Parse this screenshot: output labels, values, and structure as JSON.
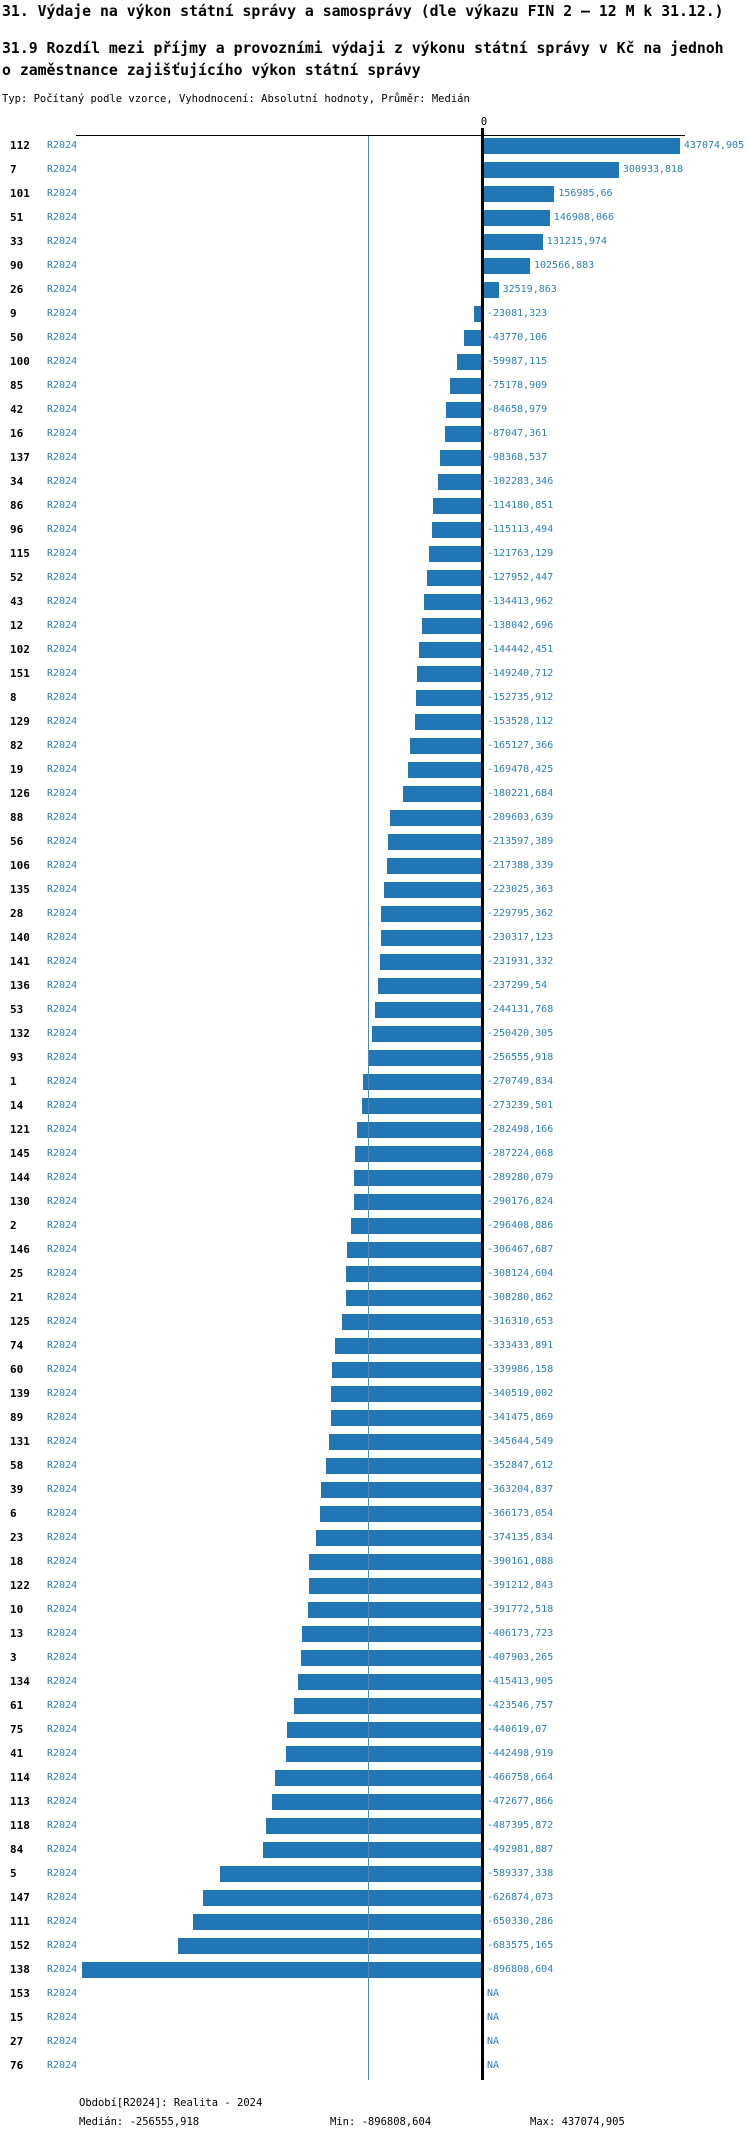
{
  "header": {
    "title": "31. Výdaje na výkon státní správy a samosprávy (dle výkazu FIN 2 – 12 M k 31.12.)",
    "subtitle_line1": "31.9 Rozdíl mezi příjmy a provozními výdaji z výkonu státní správy v Kč na jednoh",
    "subtitle_line2": "o zaměstnance zajišťujícího výkon státní správy",
    "meta": "Typ: Počítaný podle vzorce, Vyhodnocení: Absolutní hodnoty, Průměr: Medián"
  },
  "chart_data": {
    "type": "bar",
    "orientation": "horizontal",
    "zero_label": "0",
    "na_label": "NA",
    "series_label": "R2024",
    "xlim": [
      -910300,
      448400
    ],
    "median_value": -256555.918,
    "min_value": -896808.604,
    "max_value": 437074.905,
    "colors": {
      "bar": "#2077b4",
      "blue_text": "#2d7eb5",
      "median_line": "#4389bc",
      "axis": "#000000"
    },
    "rows": [
      {
        "id": "112",
        "period": "R2024",
        "value": 437074.905,
        "label": "437074,905"
      },
      {
        "id": "7",
        "period": "R2024",
        "value": 300933.818,
        "label": "300933,818"
      },
      {
        "id": "101",
        "period": "R2024",
        "value": 156985.66,
        "label": "156985,66"
      },
      {
        "id": "51",
        "period": "R2024",
        "value": 146908.066,
        "label": "146908,066"
      },
      {
        "id": "33",
        "period": "R2024",
        "value": 131215.974,
        "label": "131215,974"
      },
      {
        "id": "90",
        "period": "R2024",
        "value": 102566.883,
        "label": "102566,883"
      },
      {
        "id": "26",
        "period": "R2024",
        "value": 32519.863,
        "label": "32519,863"
      },
      {
        "id": "9",
        "period": "R2024",
        "value": -23081.323,
        "label": "-23081,323"
      },
      {
        "id": "50",
        "period": "R2024",
        "value": -43770.106,
        "label": "-43770,106"
      },
      {
        "id": "100",
        "period": "R2024",
        "value": -59987.115,
        "label": "-59987,115"
      },
      {
        "id": "85",
        "period": "R2024",
        "value": -75178.909,
        "label": "-75178,909"
      },
      {
        "id": "42",
        "period": "R2024",
        "value": -84658.979,
        "label": "-84658,979"
      },
      {
        "id": "16",
        "period": "R2024",
        "value": -87047.361,
        "label": "-87047,361"
      },
      {
        "id": "137",
        "period": "R2024",
        "value": -98368.537,
        "label": "-98368,537"
      },
      {
        "id": "34",
        "period": "R2024",
        "value": -102283.346,
        "label": "-102283,346"
      },
      {
        "id": "86",
        "period": "R2024",
        "value": -114180.851,
        "label": "-114180,851"
      },
      {
        "id": "96",
        "period": "R2024",
        "value": -115113.494,
        "label": "-115113,494"
      },
      {
        "id": "115",
        "period": "R2024",
        "value": -121763.129,
        "label": "-121763,129"
      },
      {
        "id": "52",
        "period": "R2024",
        "value": -127952.447,
        "label": "-127952,447"
      },
      {
        "id": "43",
        "period": "R2024",
        "value": -134413.962,
        "label": "-134413,962"
      },
      {
        "id": "12",
        "period": "R2024",
        "value": -138042.696,
        "label": "-138042,696"
      },
      {
        "id": "102",
        "period": "R2024",
        "value": -144442.451,
        "label": "-144442,451"
      },
      {
        "id": "151",
        "period": "R2024",
        "value": -149240.712,
        "label": "-149240,712"
      },
      {
        "id": "8",
        "period": "R2024",
        "value": -152735.912,
        "label": "-152735,912"
      },
      {
        "id": "129",
        "period": "R2024",
        "value": -153528.112,
        "label": "-153528,112"
      },
      {
        "id": "82",
        "period": "R2024",
        "value": -165127.366,
        "label": "-165127,366"
      },
      {
        "id": "19",
        "period": "R2024",
        "value": -169478.425,
        "label": "-169478,425"
      },
      {
        "id": "126",
        "period": "R2024",
        "value": -180221.684,
        "label": "-180221,684"
      },
      {
        "id": "88",
        "period": "R2024",
        "value": -209603.639,
        "label": "-209603,639"
      },
      {
        "id": "56",
        "period": "R2024",
        "value": -213597.389,
        "label": "-213597,389"
      },
      {
        "id": "106",
        "period": "R2024",
        "value": -217388.339,
        "label": "-217388,339"
      },
      {
        "id": "135",
        "period": "R2024",
        "value": -223025.363,
        "label": "-223025,363"
      },
      {
        "id": "28",
        "period": "R2024",
        "value": -229795.362,
        "label": "-229795,362"
      },
      {
        "id": "140",
        "period": "R2024",
        "value": -230317.123,
        "label": "-230317,123"
      },
      {
        "id": "141",
        "period": "R2024",
        "value": -231931.332,
        "label": "-231931,332"
      },
      {
        "id": "136",
        "period": "R2024",
        "value": -237299.54,
        "label": "-237299,54"
      },
      {
        "id": "53",
        "period": "R2024",
        "value": -244131.768,
        "label": "-244131,768"
      },
      {
        "id": "132",
        "period": "R2024",
        "value": -250420.305,
        "label": "-250420,305"
      },
      {
        "id": "93",
        "period": "R2024",
        "value": -256555.918,
        "label": "-256555,918"
      },
      {
        "id": "1",
        "period": "R2024",
        "value": -270749.834,
        "label": "-270749,834"
      },
      {
        "id": "14",
        "period": "R2024",
        "value": -273239.501,
        "label": "-273239,501"
      },
      {
        "id": "121",
        "period": "R2024",
        "value": -282498.166,
        "label": "-282498,166"
      },
      {
        "id": "145",
        "period": "R2024",
        "value": -287224.068,
        "label": "-287224,068"
      },
      {
        "id": "144",
        "period": "R2024",
        "value": -289280.079,
        "label": "-289280,079"
      },
      {
        "id": "130",
        "period": "R2024",
        "value": -290176.824,
        "label": "-290176,824"
      },
      {
        "id": "2",
        "period": "R2024",
        "value": -296408.886,
        "label": "-296408,886"
      },
      {
        "id": "146",
        "period": "R2024",
        "value": -306467.687,
        "label": "-306467,687"
      },
      {
        "id": "25",
        "period": "R2024",
        "value": -308124.604,
        "label": "-308124,604"
      },
      {
        "id": "21",
        "period": "R2024",
        "value": -308280.862,
        "label": "-308280,862"
      },
      {
        "id": "125",
        "period": "R2024",
        "value": -316310.653,
        "label": "-316310,653"
      },
      {
        "id": "74",
        "period": "R2024",
        "value": -333433.891,
        "label": "-333433,891"
      },
      {
        "id": "60",
        "period": "R2024",
        "value": -339986.158,
        "label": "-339986,158"
      },
      {
        "id": "139",
        "period": "R2024",
        "value": -340519.002,
        "label": "-340519,002"
      },
      {
        "id": "89",
        "period": "R2024",
        "value": -341475.869,
        "label": "-341475,869"
      },
      {
        "id": "131",
        "period": "R2024",
        "value": -345644.549,
        "label": "-345644,549"
      },
      {
        "id": "58",
        "period": "R2024",
        "value": -352847.612,
        "label": "-352847,612"
      },
      {
        "id": "39",
        "period": "R2024",
        "value": -363204.837,
        "label": "-363204,837"
      },
      {
        "id": "6",
        "period": "R2024",
        "value": -366173.054,
        "label": "-366173,054"
      },
      {
        "id": "23",
        "period": "R2024",
        "value": -374135.834,
        "label": "-374135,834"
      },
      {
        "id": "18",
        "period": "R2024",
        "value": -390161.088,
        "label": "-390161,088"
      },
      {
        "id": "122",
        "period": "R2024",
        "value": -391212.843,
        "label": "-391212,843"
      },
      {
        "id": "10",
        "period": "R2024",
        "value": -391772.518,
        "label": "-391772,518"
      },
      {
        "id": "13",
        "period": "R2024",
        "value": -406173.723,
        "label": "-406173,723"
      },
      {
        "id": "3",
        "period": "R2024",
        "value": -407903.265,
        "label": "-407903,265"
      },
      {
        "id": "134",
        "period": "R2024",
        "value": -415413.905,
        "label": "-415413,905"
      },
      {
        "id": "61",
        "period": "R2024",
        "value": -423546.757,
        "label": "-423546,757"
      },
      {
        "id": "75",
        "period": "R2024",
        "value": -440619.07,
        "label": "-440619,07"
      },
      {
        "id": "41",
        "period": "R2024",
        "value": -442498.919,
        "label": "-442498,919"
      },
      {
        "id": "114",
        "period": "R2024",
        "value": -466758.664,
        "label": "-466758,664"
      },
      {
        "id": "113",
        "period": "R2024",
        "value": -472677.866,
        "label": "-472677,866"
      },
      {
        "id": "118",
        "period": "R2024",
        "value": -487395.872,
        "label": "-487395,872"
      },
      {
        "id": "84",
        "period": "R2024",
        "value": -492981.887,
        "label": "-492981,887"
      },
      {
        "id": "5",
        "period": "R2024",
        "value": -589337.338,
        "label": "-589337,338"
      },
      {
        "id": "147",
        "period": "R2024",
        "value": -626874.073,
        "label": "-626874,073"
      },
      {
        "id": "111",
        "period": "R2024",
        "value": -650330.286,
        "label": "-650330,286"
      },
      {
        "id": "152",
        "period": "R2024",
        "value": -683575.165,
        "label": "-683575,165"
      },
      {
        "id": "138",
        "period": "R2024",
        "value": -896808.604,
        "label": "-896808,604"
      },
      {
        "id": "153",
        "period": "R2024",
        "value": null,
        "label": "NA"
      },
      {
        "id": "15",
        "period": "R2024",
        "value": null,
        "label": "NA"
      },
      {
        "id": "27",
        "period": "R2024",
        "value": null,
        "label": "NA"
      },
      {
        "id": "76",
        "period": "R2024",
        "value": null,
        "label": "NA"
      }
    ]
  },
  "footer": {
    "period_line": "Období[R2024]: Realita - 2024",
    "median_label": "Medián: -256555,918",
    "min_label": "Min: -896808,604",
    "max_label": "Max: 437074,905"
  }
}
